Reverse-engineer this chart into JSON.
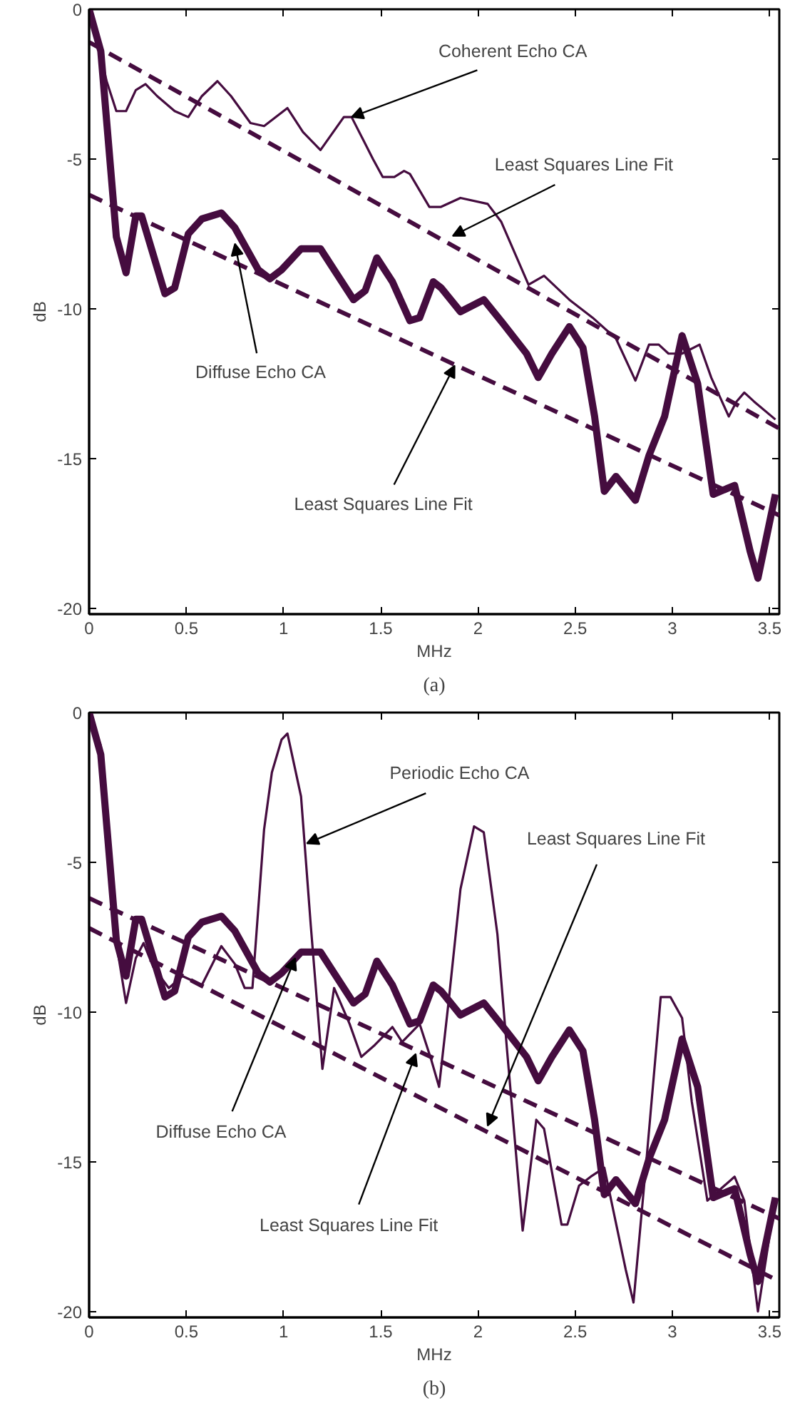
{
  "chart_data": [
    {
      "type": "line",
      "xlabel": "MHz",
      "ylabel": "dB",
      "xlim": [
        0,
        3.55
      ],
      "ylim": [
        -20.2,
        0
      ],
      "xticks": [
        0,
        0.5,
        1,
        1.5,
        2,
        2.5,
        3,
        3.5
      ],
      "yticks": [
        -20,
        -15,
        -10,
        -5,
        0
      ],
      "series": [
        {
          "color": "#450c3f",
          "line_style": "solid",
          "x": [
            0,
            0.09,
            0.14,
            0.19,
            0.24,
            0.29,
            0.35,
            0.44,
            0.51,
            0.58,
            0.66,
            0.73,
            0.83,
            0.9,
            1.02,
            1.1,
            1.19,
            1.31,
            1.35,
            1.46,
            1.51,
            1.57,
            1.62,
            1.65,
            1.75,
            1.81,
            1.91,
            2.05,
            2.12,
            2.26,
            2.34,
            2.47,
            2.59,
            2.71,
            2.81,
            2.88,
            2.93,
            2.98,
            3.05,
            3.14,
            3.2,
            3.29,
            3.33,
            3.37,
            3.42,
            3.53
          ],
          "values": [
            0,
            -2.4,
            -3.4,
            -3.4,
            -2.7,
            -2.5,
            -2.9,
            -3.4,
            -3.6,
            -2.9,
            -2.4,
            -2.9,
            -3.8,
            -3.9,
            -3.3,
            -4.1,
            -4.7,
            -3.6,
            -3.6,
            -5.0,
            -5.6,
            -5.6,
            -5.4,
            -5.5,
            -6.6,
            -6.6,
            -6.3,
            -6.5,
            -7.1,
            -9.2,
            -8.9,
            -9.7,
            -10.3,
            -11.0,
            -12.4,
            -11.2,
            -11.2,
            -11.5,
            -11.5,
            -11.2,
            -12.3,
            -13.6,
            -13.1,
            -12.8,
            -13.1,
            -13.7
          ]
        },
        {
          "color": "#450c3f",
          "line_style": "solid",
          "x": [
            0,
            0.06,
            0.14,
            0.19,
            0.24,
            0.27,
            0.33,
            0.39,
            0.44,
            0.51,
            0.58,
            0.68,
            0.75,
            0.87,
            0.93,
            0.99,
            1.09,
            1.19,
            1.26,
            1.36,
            1.42,
            1.48,
            1.56,
            1.65,
            1.7,
            1.77,
            1.81,
            1.91,
            2.03,
            2.13,
            2.25,
            2.31,
            2.38,
            2.47,
            2.54,
            2.6,
            2.65,
            2.71,
            2.81,
            2.88,
            2.96,
            3.05,
            3.13,
            3.21,
            3.32,
            3.4,
            3.44,
            3.53
          ],
          "values": [
            0,
            -1.4,
            -7.6,
            -8.8,
            -6.9,
            -6.9,
            -8.2,
            -9.5,
            -9.3,
            -7.5,
            -7.0,
            -6.8,
            -7.3,
            -8.7,
            -9.0,
            -8.7,
            -8.0,
            -8.0,
            -8.7,
            -9.7,
            -9.4,
            -8.3,
            -9.1,
            -10.4,
            -10.3,
            -9.1,
            -9.3,
            -10.1,
            -9.7,
            -10.5,
            -11.5,
            -12.3,
            -11.5,
            -10.6,
            -11.3,
            -13.6,
            -16.1,
            -15.6,
            -16.4,
            -14.9,
            -13.6,
            -10.9,
            -12.5,
            -16.2,
            -15.9,
            -18.1,
            -19.0,
            -16.2
          ]
        },
        {
          "color": "#450c3f",
          "line_style": "dashed",
          "x": [
            0,
            3.55
          ],
          "values": [
            -1.1,
            -14.0
          ]
        },
        {
          "color": "#450c3f",
          "line_style": "dashed",
          "x": [
            0,
            3.55
          ],
          "values": [
            -6.2,
            -16.9
          ]
        }
      ],
      "annotations": [
        {
          "text": "Coherent Echo CA",
          "x": 1.35,
          "y": -3.6
        },
        {
          "text": "Least Squares Line Fit",
          "x": 1.87,
          "y": -7.57
        },
        {
          "text": "Diffuse Echo CA",
          "x": 0.75,
          "y": -7.83
        },
        {
          "text": "Least Squares Line Fit",
          "x": 1.88,
          "y": -11.9
        },
        "(a)"
      ]
    },
    {
      "type": "line",
      "xlabel": "MHz",
      "ylabel": "dB",
      "xlim": [
        0,
        3.55
      ],
      "ylim": [
        -20.2,
        0
      ],
      "xticks": [
        0,
        0.5,
        1,
        1.5,
        2,
        2.5,
        3,
        3.5
      ],
      "yticks": [
        -20,
        -15,
        -10,
        -5,
        0
      ],
      "series": [
        {
          "color": "#450c3f",
          "line_style": "solid",
          "x": [
            0,
            0.06,
            0.14,
            0.19,
            0.24,
            0.28,
            0.33,
            0.41,
            0.48,
            0.58,
            0.68,
            0.75,
            0.8,
            0.84,
            0.9,
            0.94,
            0.99,
            1.02,
            1.09,
            1.14,
            1.2,
            1.26,
            1.34,
            1.4,
            1.47,
            1.56,
            1.61,
            1.7,
            1.76,
            1.8,
            1.85,
            1.91,
            1.98,
            2.03,
            2.1,
            2.15,
            2.23,
            2.3,
            2.34,
            2.43,
            2.46,
            2.52,
            2.58,
            2.65,
            2.76,
            2.8,
            2.87,
            2.94,
            2.99,
            3.05,
            3.1,
            3.18,
            3.25,
            3.32,
            3.37,
            3.44,
            3.53
          ],
          "values": [
            0,
            -1.1,
            -7.7,
            -9.7,
            -8.2,
            -7.7,
            -8.5,
            -9.2,
            -8.8,
            -9.1,
            -7.8,
            -8.4,
            -9.2,
            -9.2,
            -3.9,
            -2.0,
            -0.9,
            -0.7,
            -2.8,
            -7.1,
            -11.9,
            -9.2,
            -10.4,
            -11.5,
            -11.1,
            -10.5,
            -11.0,
            -10.4,
            -11.6,
            -12.5,
            -9.6,
            -5.9,
            -3.8,
            -4.0,
            -7.4,
            -11.3,
            -17.3,
            -13.6,
            -13.9,
            -17.1,
            -17.1,
            -15.8,
            -15.5,
            -15.2,
            -18.6,
            -19.7,
            -14.7,
            -9.5,
            -9.5,
            -10.2,
            -13.0,
            -16.3,
            -15.9,
            -15.5,
            -16.3,
            -20.0,
            -16.2
          ]
        },
        {
          "color": "#450c3f",
          "line_style": "solid",
          "x": [
            0,
            0.06,
            0.14,
            0.19,
            0.24,
            0.27,
            0.33,
            0.39,
            0.44,
            0.51,
            0.58,
            0.68,
            0.75,
            0.87,
            0.93,
            0.99,
            1.09,
            1.19,
            1.26,
            1.36,
            1.42,
            1.48,
            1.56,
            1.65,
            1.7,
            1.77,
            1.81,
            1.91,
            2.03,
            2.13,
            2.25,
            2.31,
            2.38,
            2.47,
            2.54,
            2.6,
            2.65,
            2.71,
            2.81,
            2.88,
            2.96,
            3.05,
            3.13,
            3.21,
            3.32,
            3.4,
            3.44,
            3.53
          ],
          "values": [
            0,
            -1.4,
            -7.6,
            -8.8,
            -6.9,
            -6.9,
            -8.2,
            -9.5,
            -9.3,
            -7.5,
            -7.0,
            -6.8,
            -7.3,
            -8.7,
            -9.0,
            -8.7,
            -8.0,
            -8.0,
            -8.7,
            -9.7,
            -9.4,
            -8.3,
            -9.1,
            -10.4,
            -10.3,
            -9.1,
            -9.3,
            -10.1,
            -9.7,
            -10.5,
            -11.5,
            -12.3,
            -11.5,
            -10.6,
            -11.3,
            -13.6,
            -16.1,
            -15.6,
            -16.4,
            -14.9,
            -13.6,
            -10.9,
            -12.5,
            -16.2,
            -15.9,
            -18.1,
            -19.0,
            -16.2
          ]
        },
        {
          "color": "#450c3f",
          "line_style": "dashed",
          "x": [
            0,
            3.55
          ],
          "values": [
            -6.2,
            -16.9
          ]
        },
        {
          "color": "#450c3f",
          "line_style": "dashed",
          "x": [
            0,
            3.55
          ],
          "values": [
            -7.2,
            -19.0
          ]
        }
      ],
      "annotations": [
        {
          "text": "Periodic Echo CA",
          "x": 1.12,
          "y": -4.37
        },
        {
          "text": "Least Squares Line Fit",
          "x": 2.05,
          "y": -13.8
        },
        {
          "text": "Diffuse Echo CA",
          "x": 1.06,
          "y": -8.2
        },
        {
          "text": "Least Squares Line Fit",
          "x": 1.68,
          "y": -11.4
        },
        "(b)"
      ]
    }
  ]
}
